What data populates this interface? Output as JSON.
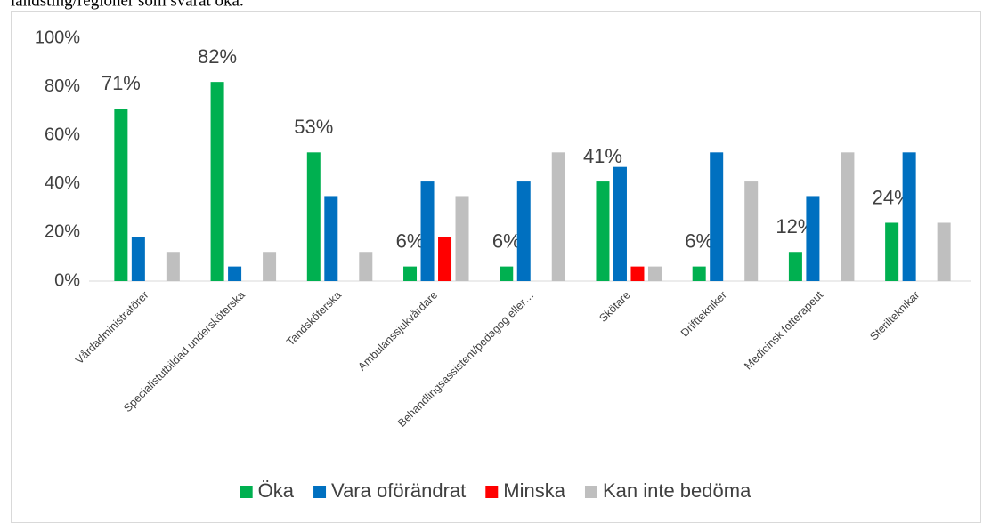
{
  "caption": "landsting/regioner som svarat öka.",
  "chart_data": {
    "type": "bar",
    "categories": [
      "Vårdadministratörer",
      "Specialistutbildad undersköterska",
      "Tandsköterska",
      "Ambulanssjukvårdare",
      "Behandlingsassistent/pedagog eller…",
      "Skötare",
      "Drifttekniker",
      "Medicinsk fotterapeut",
      "Sterilteknikar"
    ],
    "series": [
      {
        "name": "Öka",
        "color": "#00b050",
        "values": [
          71,
          82,
          53,
          6,
          6,
          41,
          6,
          12,
          24
        ],
        "value_labels": [
          "71%",
          "82%",
          "53%",
          "6%",
          "6%",
          "41%",
          "6%",
          "12%",
          "24%"
        ]
      },
      {
        "name": "Vara oförändrat",
        "color": "#0070c0",
        "values": [
          18,
          6,
          35,
          41,
          41,
          47,
          53,
          35,
          53
        ]
      },
      {
        "name": "Minska",
        "color": "#ff0000",
        "values": [
          0,
          0,
          0,
          18,
          0,
          6,
          0,
          0,
          0
        ]
      },
      {
        "name": "Kan inte bedöma",
        "color": "#bfbfbf",
        "values": [
          12,
          12,
          12,
          35,
          53,
          6,
          41,
          53,
          24
        ]
      }
    ],
    "ylim": [
      0,
      100
    ],
    "yticks": [
      {
        "value": 0,
        "label": "0%"
      },
      {
        "value": 20,
        "label": "20%"
      },
      {
        "value": 40,
        "label": "40%"
      },
      {
        "value": 60,
        "label": "60%"
      },
      {
        "value": 80,
        "label": "80%"
      },
      {
        "value": 100,
        "label": "100%"
      }
    ],
    "grid": false,
    "legend": "bottom"
  }
}
